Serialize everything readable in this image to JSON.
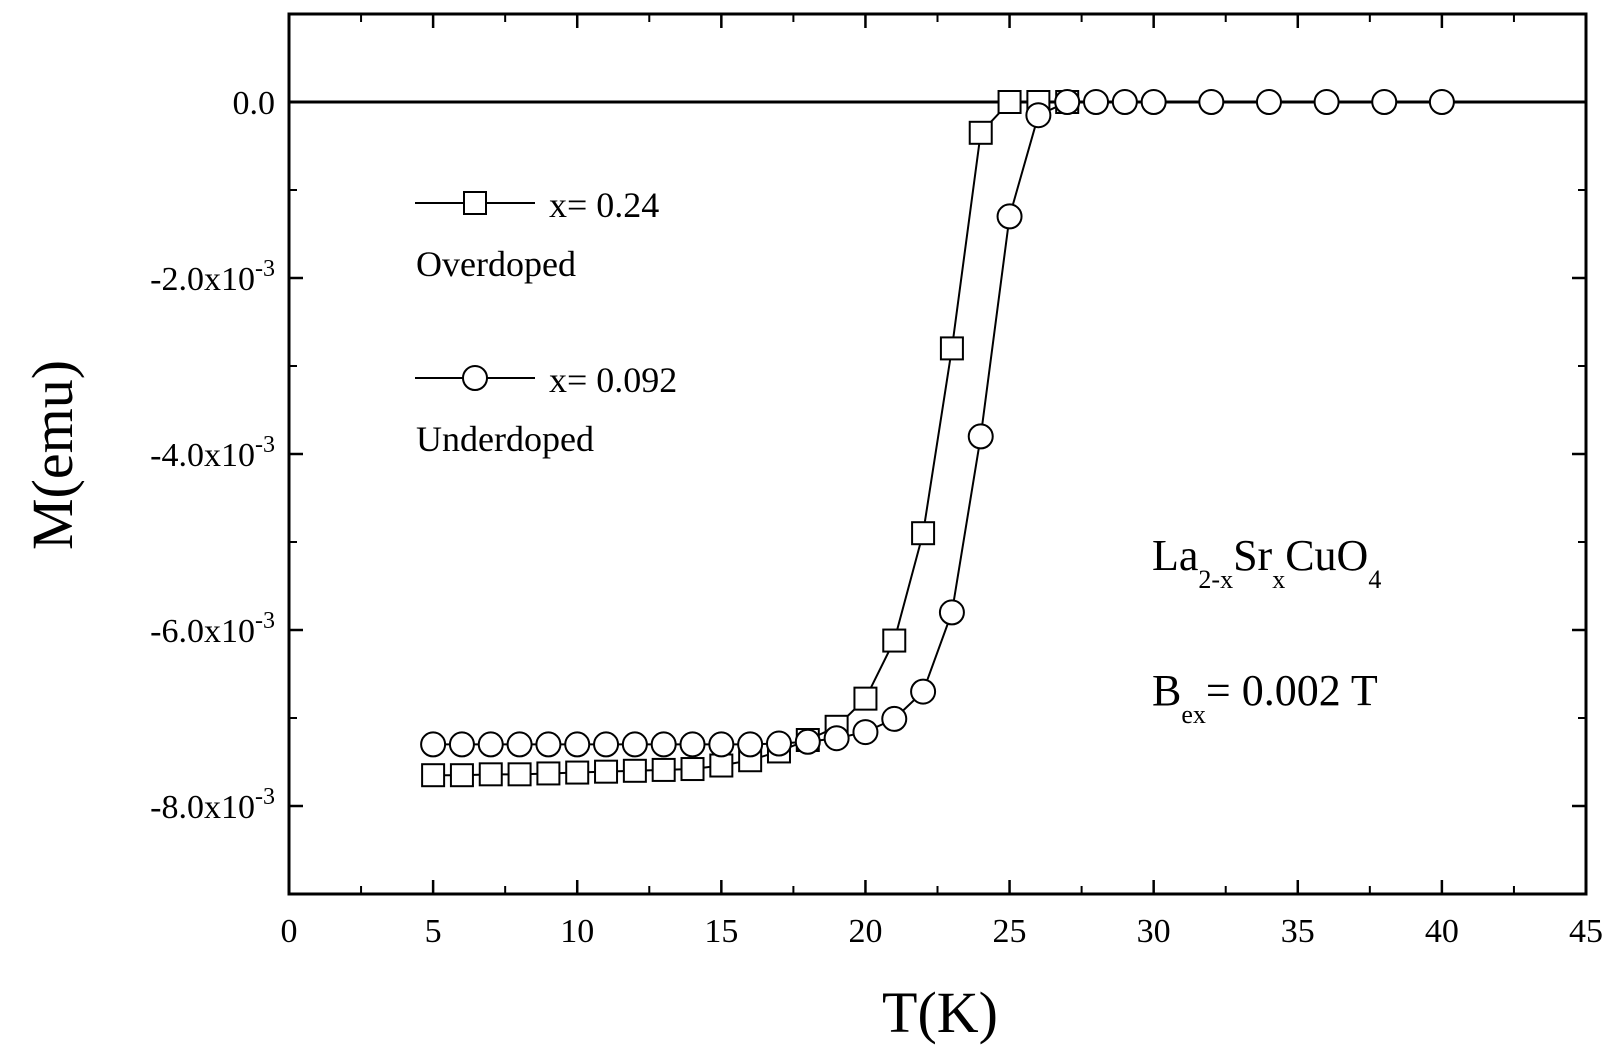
{
  "chart_data": {
    "type": "scatter",
    "title": "",
    "xlabel": "T(K)",
    "ylabel": "M(emu)",
    "xlim": [
      0,
      45
    ],
    "ylim": [
      -0.009,
      0.001
    ],
    "x_ticks": [
      0,
      5,
      10,
      15,
      20,
      25,
      30,
      35,
      40,
      45
    ],
    "y_ticks": [
      {
        "value": 0.0,
        "label": "0.0",
        "exp": ""
      },
      {
        "value": -0.002,
        "label": "-2.0x10",
        "exp": "-3"
      },
      {
        "value": -0.004,
        "label": "-4.0x10",
        "exp": "-3"
      },
      {
        "value": -0.006,
        "label": "-6.0x10",
        "exp": "-3"
      },
      {
        "value": -0.008,
        "label": "-8.0x10",
        "exp": "-3"
      }
    ],
    "grid": false,
    "reference_line": {
      "y": 0.0
    },
    "legend_position": "upper-left",
    "series": [
      {
        "name": "x= 0.24",
        "caption": "Overdoped",
        "marker": "square",
        "x": [
          5,
          6,
          7,
          8,
          9,
          10,
          11,
          12,
          13,
          14,
          15,
          16,
          17,
          18,
          19,
          20,
          21,
          22,
          23,
          24,
          25,
          26,
          27
        ],
        "y": [
          -0.00765,
          -0.00765,
          -0.00764,
          -0.00764,
          -0.00763,
          -0.00762,
          -0.00761,
          -0.0076,
          -0.00759,
          -0.00758,
          -0.00754,
          -0.00748,
          -0.00738,
          -0.00725,
          -0.0071,
          -0.00678,
          -0.00612,
          -0.0049,
          -0.0028,
          -0.00035,
          0.0,
          0.0,
          0.0
        ]
      },
      {
        "name": "x= 0.092",
        "caption": "Underdoped",
        "marker": "circle",
        "x": [
          5,
          6,
          7,
          8,
          9,
          10,
          11,
          12,
          13,
          14,
          15,
          16,
          17,
          18,
          19,
          20,
          21,
          22,
          23,
          24,
          25,
          26,
          27,
          28,
          29,
          30,
          32,
          34,
          36,
          38,
          40
        ],
        "y": [
          -0.0073,
          -0.0073,
          -0.0073,
          -0.0073,
          -0.0073,
          -0.0073,
          -0.0073,
          -0.0073,
          -0.0073,
          -0.0073,
          -0.0073,
          -0.0073,
          -0.00729,
          -0.00727,
          -0.00723,
          -0.00716,
          -0.00701,
          -0.0067,
          -0.0058,
          -0.0038,
          -0.0013,
          -0.00015,
          0.0,
          0.0,
          0.0,
          0.0,
          0.0,
          0.0,
          0.0,
          0.0,
          0.0
        ]
      }
    ],
    "annotations": {
      "formula": {
        "p1": "La",
        "s1": "2-x",
        "p2": "Sr",
        "s2": "x",
        "p3": "CuO",
        "s3": "4"
      },
      "field": {
        "p1": "B",
        "s1": "ex",
        "p2": "= 0.002 T"
      }
    }
  }
}
